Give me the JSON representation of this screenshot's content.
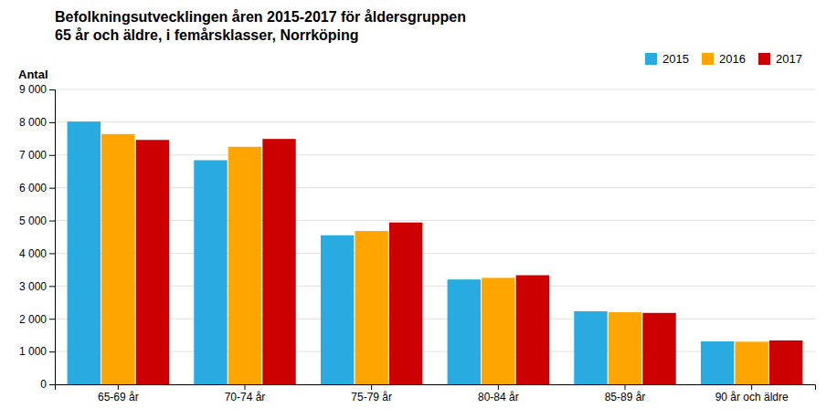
{
  "chart_data": {
    "type": "bar",
    "title": "Befolkningsutvecklingen åren 2015-2017 för åldersgruppen",
    "subtitle": "65 år och äldre, i femårsklasser, Norrköping",
    "y_label": "Antal",
    "categories": [
      "65-69 år",
      "70-74 år",
      "75-79 år",
      "80-84 år",
      "85-89 år",
      "90 år och äldre"
    ],
    "series": [
      {
        "name": "2015",
        "color": "#29ABE2",
        "values": [
          8020,
          6840,
          4550,
          3200,
          2230,
          1310
        ]
      },
      {
        "name": "2016",
        "color": "#FFA500",
        "values": [
          7640,
          7250,
          4680,
          3250,
          2200,
          1300
        ]
      },
      {
        "name": "2017",
        "color": "#CC0000",
        "values": [
          7460,
          7490,
          4940,
          3330,
          2180,
          1340
        ]
      }
    ],
    "ylim": [
      0,
      9000
    ],
    "yticks": [
      0,
      {
        "value": 1000,
        "label": "1 000"
      },
      {
        "value": 2000,
        "label": "2 000"
      },
      {
        "value": 3000,
        "label": "3 000"
      },
      {
        "value": 4000,
        "label": "4 000"
      },
      {
        "value": 5000,
        "label": "5 000"
      },
      {
        "value": 6000,
        "label": "6 000"
      },
      {
        "value": 7000,
        "label": "7 000"
      },
      {
        "value": 8000,
        "label": "8 000"
      },
      {
        "value": 9000,
        "label": "9 000"
      }
    ],
    "grid": true,
    "legend": "top-right"
  }
}
